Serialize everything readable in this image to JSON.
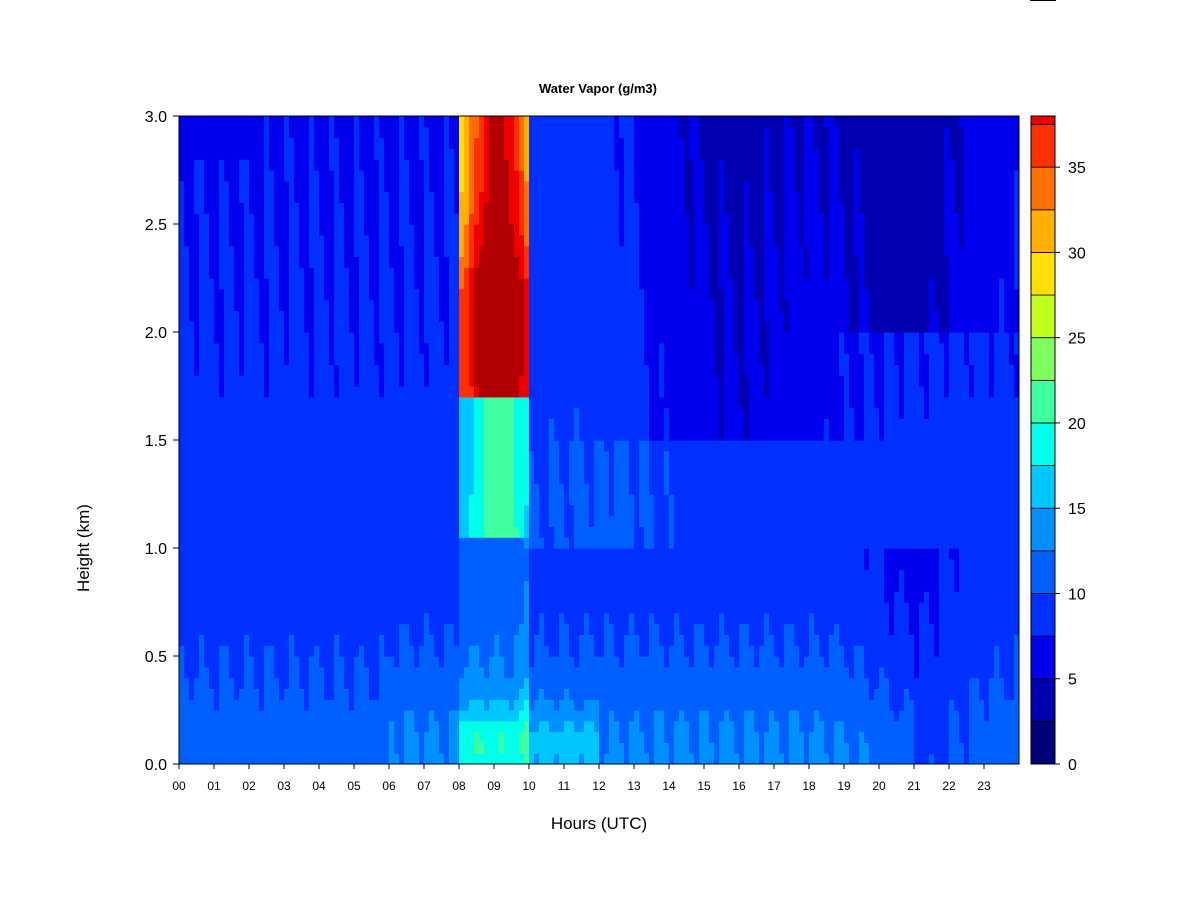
{
  "chart_data": {
    "type": "heatmap",
    "title": "Water Vapor (g/m3)",
    "xlabel": "Hours (UTC)",
    "ylabel": "Height (km)",
    "xlim": [
      0,
      24
    ],
    "ylim": [
      0,
      3.0
    ],
    "x_tick_labels": [
      "00",
      "01",
      "02",
      "03",
      "04",
      "05",
      "06",
      "07",
      "08",
      "09",
      "10",
      "11",
      "12",
      "13",
      "14",
      "15",
      "16",
      "17",
      "18",
      "19",
      "20",
      "21",
      "22",
      "23"
    ],
    "y_ticks": [
      0.0,
      0.5,
      1.0,
      1.5,
      2.0,
      2.5,
      3.0
    ],
    "y_tick_labels": [
      "0.0",
      "0.5",
      "1.0",
      "1.5",
      "2.0",
      "2.5",
      "3.0"
    ],
    "colorbar": {
      "levels": [
        0,
        2.5,
        5,
        7.5,
        10,
        12.5,
        15,
        17.5,
        20,
        22.5,
        25,
        27.5,
        30,
        32.5,
        35,
        37.5
      ],
      "colors": [
        "#00007a",
        "#0000b0",
        "#0000ee",
        "#0030ff",
        "#0060ff",
        "#0090ff",
        "#00c8ff",
        "#00ffe8",
        "#40ffa0",
        "#80ff60",
        "#c0ff20",
        "#ffe000",
        "#ffb000",
        "#ff7000",
        "#ff3000",
        "#ee0000",
        "#b00000",
        "#800000"
      ],
      "tick_values": [
        0,
        5,
        10,
        15,
        20,
        25,
        30,
        35
      ],
      "tick_labels": [
        "0",
        "5",
        "10",
        "15",
        "20",
        "25",
        "30",
        "35"
      ],
      "range": [
        0,
        38
      ]
    }
  }
}
